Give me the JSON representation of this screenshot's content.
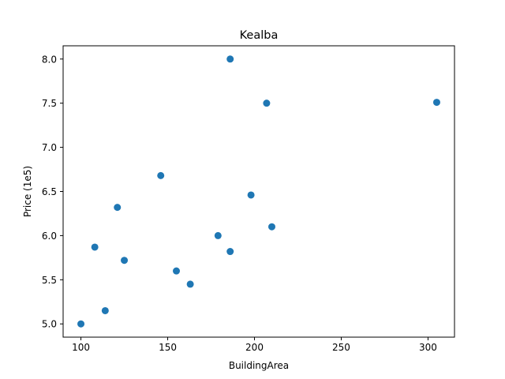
{
  "chart_data": {
    "type": "scatter",
    "title": "Kealba",
    "xlabel": "BuildingArea",
    "ylabel": "Price (1e5)",
    "xlim": [
      89.75,
      315.25
    ],
    "ylim": [
      4.85,
      8.15
    ],
    "xticks": [
      100,
      150,
      200,
      250,
      300
    ],
    "xtick_labels": [
      "100",
      "150",
      "200",
      "250",
      "300"
    ],
    "yticks": [
      5.0,
      5.5,
      6.0,
      6.5,
      7.0,
      7.5,
      8.0
    ],
    "ytick_labels": [
      "5.0",
      "5.5",
      "6.0",
      "6.5",
      "7.0",
      "7.5",
      "8.0"
    ],
    "grid": false,
    "color": "#1f77b4",
    "series": [
      {
        "points": [
          {
            "x": 100,
            "y": 5.0
          },
          {
            "x": 114,
            "y": 5.15
          },
          {
            "x": 108,
            "y": 5.87
          },
          {
            "x": 121,
            "y": 6.32
          },
          {
            "x": 125,
            "y": 5.72
          },
          {
            "x": 146,
            "y": 6.68
          },
          {
            "x": 155,
            "y": 5.6
          },
          {
            "x": 163,
            "y": 5.45
          },
          {
            "x": 179,
            "y": 6.0
          },
          {
            "x": 186,
            "y": 8.0
          },
          {
            "x": 186,
            "y": 5.82
          },
          {
            "x": 198,
            "y": 6.46
          },
          {
            "x": 207,
            "y": 7.5
          },
          {
            "x": 210,
            "y": 6.1
          },
          {
            "x": 305,
            "y": 7.51
          }
        ]
      }
    ]
  }
}
